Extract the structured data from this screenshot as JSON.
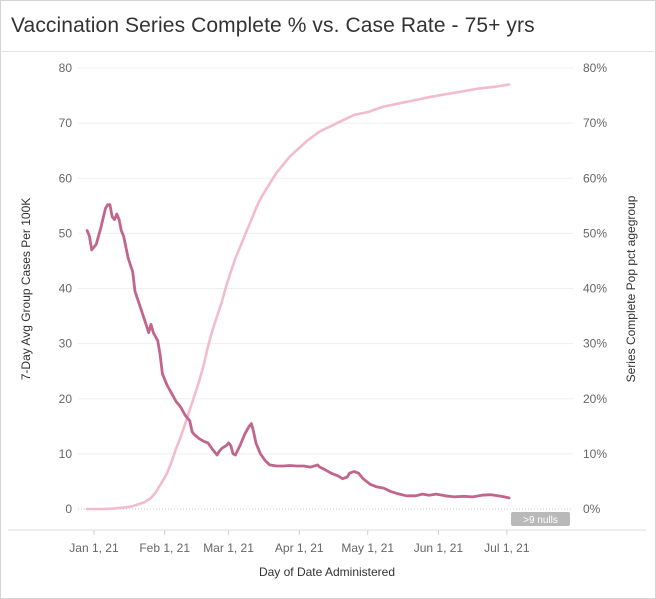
{
  "page": {
    "title": "Vaccination Series Complete % vs. Case Rate  - 75+ yrs"
  },
  "chart_data": {
    "type": "line",
    "title": "Vaccination Series Complete % vs. Case Rate  - 75+ yrs",
    "xlabel": "Day of Date Administered",
    "ylabel_left": "7-Day Avg Group Cases Per 100K",
    "ylabel_right": "Series Complete Pop pct agegroup",
    "x_domain": [
      "2020-12-25",
      "2021-07-30"
    ],
    "ylim_left": [
      0,
      80
    ],
    "ylim_right": [
      0,
      80
    ],
    "x_ticks": [
      {
        "date": "2021-01-01",
        "label": "Jan 1, 21"
      },
      {
        "date": "2021-02-01",
        "label": "Feb 1, 21"
      },
      {
        "date": "2021-03-01",
        "label": "Mar 1, 21"
      },
      {
        "date": "2021-04-01",
        "label": "Apr 1, 21"
      },
      {
        "date": "2021-05-01",
        "label": "May 1, 21"
      },
      {
        "date": "2021-06-01",
        "label": "Jun 1, 21"
      },
      {
        "date": "2021-07-01",
        "label": "Jul 1, 21"
      }
    ],
    "y_ticks_left": [
      {
        "value": 0,
        "label": "0"
      },
      {
        "value": 10,
        "label": "10"
      },
      {
        "value": 20,
        "label": "20"
      },
      {
        "value": 30,
        "label": "30"
      },
      {
        "value": 40,
        "label": "40"
      },
      {
        "value": 50,
        "label": "50"
      },
      {
        "value": 60,
        "label": "60"
      },
      {
        "value": 70,
        "label": "70"
      },
      {
        "value": 80,
        "label": "80"
      }
    ],
    "y_ticks_right": [
      {
        "value": 0,
        "label": "0%"
      },
      {
        "value": 10,
        "label": "10%"
      },
      {
        "value": 20,
        "label": "20%"
      },
      {
        "value": 30,
        "label": "30%"
      },
      {
        "value": 40,
        "label": "40%"
      },
      {
        "value": 50,
        "label": "50%"
      },
      {
        "value": 60,
        "label": "60%"
      },
      {
        "value": 70,
        "label": "70%"
      },
      {
        "value": 80,
        "label": "80%"
      }
    ],
    "nulls_indicator": ">9 nulls",
    "series": [
      {
        "name": "7-Day Avg Group Cases Per 100K",
        "axis": "left",
        "color": "#c2658c",
        "points": [
          [
            "2020-12-29",
            50.5
          ],
          [
            "2020-12-30",
            49.5
          ],
          [
            "2020-12-31",
            47.0
          ],
          [
            "2021-01-02",
            48.0
          ],
          [
            "2021-01-04",
            51.0
          ],
          [
            "2021-01-06",
            54.5
          ],
          [
            "2021-01-07",
            55.2
          ],
          [
            "2021-01-08",
            55.2
          ],
          [
            "2021-01-09",
            53.0
          ],
          [
            "2021-01-10",
            52.5
          ],
          [
            "2021-01-11",
            53.5
          ],
          [
            "2021-01-12",
            52.5
          ],
          [
            "2021-01-13",
            50.5
          ],
          [
            "2021-01-14",
            49.5
          ],
          [
            "2021-01-16",
            45.5
          ],
          [
            "2021-01-18",
            43.0
          ],
          [
            "2021-01-19",
            39.5
          ],
          [
            "2021-01-21",
            37.0
          ],
          [
            "2021-01-23",
            34.5
          ],
          [
            "2021-01-25",
            32.0
          ],
          [
            "2021-01-26",
            33.5
          ],
          [
            "2021-01-27",
            32.0
          ],
          [
            "2021-01-29",
            30.5
          ],
          [
            "2021-01-30",
            28.0
          ],
          [
            "2021-01-31",
            24.5
          ],
          [
            "2021-02-02",
            22.5
          ],
          [
            "2021-02-04",
            21.0
          ],
          [
            "2021-02-06",
            19.5
          ],
          [
            "2021-02-08",
            18.5
          ],
          [
            "2021-02-10",
            17.0
          ],
          [
            "2021-02-12",
            16.0
          ],
          [
            "2021-02-13",
            14.0
          ],
          [
            "2021-02-14",
            13.5
          ],
          [
            "2021-02-16",
            12.8
          ],
          [
            "2021-02-18",
            12.3
          ],
          [
            "2021-02-20",
            12.0
          ],
          [
            "2021-02-22",
            10.8
          ],
          [
            "2021-02-24",
            9.8
          ],
          [
            "2021-02-25",
            10.5
          ],
          [
            "2021-02-26",
            11.0
          ],
          [
            "2021-02-28",
            11.5
          ],
          [
            "2021-03-01",
            12.0
          ],
          [
            "2021-03-02",
            11.5
          ],
          [
            "2021-03-03",
            10.0
          ],
          [
            "2021-03-04",
            9.8
          ],
          [
            "2021-03-06",
            11.5
          ],
          [
            "2021-03-08",
            13.5
          ],
          [
            "2021-03-10",
            15.0
          ],
          [
            "2021-03-11",
            15.5
          ],
          [
            "2021-03-12",
            14.0
          ],
          [
            "2021-03-13",
            12.0
          ],
          [
            "2021-03-15",
            10.0
          ],
          [
            "2021-03-17",
            8.8
          ],
          [
            "2021-03-19",
            8.0
          ],
          [
            "2021-03-22",
            7.8
          ],
          [
            "2021-03-25",
            7.8
          ],
          [
            "2021-03-28",
            7.9
          ],
          [
            "2021-03-31",
            7.8
          ],
          [
            "2021-04-03",
            7.8
          ],
          [
            "2021-04-06",
            7.6
          ],
          [
            "2021-04-09",
            8.0
          ],
          [
            "2021-04-10",
            7.6
          ],
          [
            "2021-04-12",
            7.2
          ],
          [
            "2021-04-15",
            6.5
          ],
          [
            "2021-04-18",
            6.0
          ],
          [
            "2021-04-20",
            5.5
          ],
          [
            "2021-04-22",
            5.8
          ],
          [
            "2021-04-23",
            6.5
          ],
          [
            "2021-04-25",
            6.8
          ],
          [
            "2021-04-27",
            6.5
          ],
          [
            "2021-04-29",
            5.5
          ],
          [
            "2021-05-02",
            4.5
          ],
          [
            "2021-05-05",
            4.0
          ],
          [
            "2021-05-08",
            3.8
          ],
          [
            "2021-05-11",
            3.2
          ],
          [
            "2021-05-14",
            2.8
          ],
          [
            "2021-05-18",
            2.4
          ],
          [
            "2021-05-22",
            2.4
          ],
          [
            "2021-05-25",
            2.7
          ],
          [
            "2021-05-28",
            2.5
          ],
          [
            "2021-05-31",
            2.7
          ],
          [
            "2021-06-04",
            2.4
          ],
          [
            "2021-06-08",
            2.2
          ],
          [
            "2021-06-12",
            2.3
          ],
          [
            "2021-06-16",
            2.2
          ],
          [
            "2021-06-20",
            2.5
          ],
          [
            "2021-06-24",
            2.6
          ],
          [
            "2021-06-27",
            2.4
          ],
          [
            "2021-06-30",
            2.2
          ],
          [
            "2021-07-02",
            2.0
          ]
        ]
      },
      {
        "name": "Series Complete Pop pct agegroup",
        "axis": "right",
        "color": "#f3bccd",
        "points": [
          [
            "2020-12-29",
            0.0
          ],
          [
            "2021-01-05",
            0.0
          ],
          [
            "2021-01-10",
            0.1
          ],
          [
            "2021-01-15",
            0.3
          ],
          [
            "2021-01-18",
            0.5
          ],
          [
            "2021-01-20",
            0.8
          ],
          [
            "2021-01-23",
            1.2
          ],
          [
            "2021-01-26",
            2.0
          ],
          [
            "2021-01-28",
            3.0
          ],
          [
            "2021-01-31",
            5.0
          ],
          [
            "2021-02-02",
            6.5
          ],
          [
            "2021-02-04",
            8.5
          ],
          [
            "2021-02-06",
            11.0
          ],
          [
            "2021-02-08",
            13.0
          ],
          [
            "2021-02-10",
            15.5
          ],
          [
            "2021-02-12",
            18.0
          ],
          [
            "2021-02-14",
            20.5
          ],
          [
            "2021-02-16",
            23.0
          ],
          [
            "2021-02-18",
            26.0
          ],
          [
            "2021-02-20",
            29.5
          ],
          [
            "2021-02-22",
            32.5
          ],
          [
            "2021-02-24",
            35.0
          ],
          [
            "2021-02-26",
            37.5
          ],
          [
            "2021-02-28",
            40.5
          ],
          [
            "2021-03-02",
            43.0
          ],
          [
            "2021-03-04",
            45.5
          ],
          [
            "2021-03-06",
            47.5
          ],
          [
            "2021-03-08",
            49.5
          ],
          [
            "2021-03-10",
            51.5
          ],
          [
            "2021-03-12",
            53.5
          ],
          [
            "2021-03-14",
            55.5
          ],
          [
            "2021-03-16",
            57.0
          ],
          [
            "2021-03-19",
            59.0
          ],
          [
            "2021-03-22",
            61.0
          ],
          [
            "2021-03-25",
            62.5
          ],
          [
            "2021-03-28",
            64.0
          ],
          [
            "2021-04-01",
            65.5
          ],
          [
            "2021-04-05",
            67.0
          ],
          [
            "2021-04-10",
            68.5
          ],
          [
            "2021-04-15",
            69.5
          ],
          [
            "2021-04-20",
            70.5
          ],
          [
            "2021-04-25",
            71.5
          ],
          [
            "2021-05-01",
            72.0
          ],
          [
            "2021-05-08",
            73.0
          ],
          [
            "2021-05-15",
            73.6
          ],
          [
            "2021-05-22",
            74.2
          ],
          [
            "2021-05-29",
            74.8
          ],
          [
            "2021-06-05",
            75.3
          ],
          [
            "2021-06-12",
            75.8
          ],
          [
            "2021-06-19",
            76.3
          ],
          [
            "2021-06-26",
            76.6
          ],
          [
            "2021-07-02",
            77.0
          ]
        ]
      }
    ]
  }
}
